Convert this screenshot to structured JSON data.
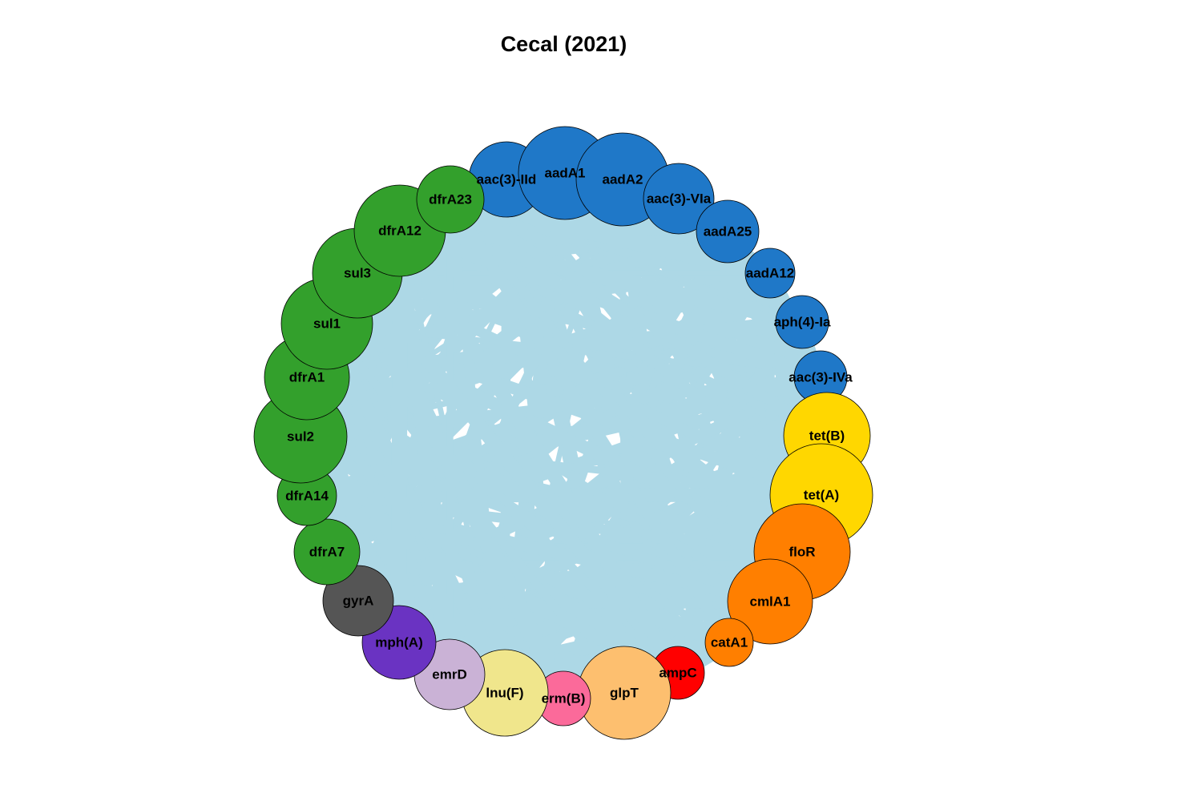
{
  "title": "Cecal (2021)",
  "edge_color": "#ADD8E6",
  "nodes": [
    {
      "id": "aac(3)-IId",
      "color": "#1F78C8"
    },
    {
      "id": "aadA1",
      "color": "#1F78C8"
    },
    {
      "id": "aadA2",
      "color": "#1F78C8"
    },
    {
      "id": "aac(3)-VIa",
      "color": "#1F78C8"
    },
    {
      "id": "aadA25",
      "color": "#1F78C8"
    },
    {
      "id": "aadA12",
      "color": "#1F78C8"
    },
    {
      "id": "aph(4)-Ia",
      "color": "#1F78C8"
    },
    {
      "id": "aac(3)-IVa",
      "color": "#1F78C8"
    },
    {
      "id": "tet(B)",
      "color": "#FFD700"
    },
    {
      "id": "tet(A)",
      "color": "#FFD700"
    },
    {
      "id": "floR",
      "color": "#FF7F00"
    },
    {
      "id": "cmlA1",
      "color": "#FF7F00"
    },
    {
      "id": "catA1",
      "color": "#FF7F00"
    },
    {
      "id": "ampC",
      "color": "#FF0000"
    },
    {
      "id": "glpT",
      "color": "#FDBF6F"
    },
    {
      "id": "erm(B)",
      "color": "#FB6A9A"
    },
    {
      "id": "lnu(F)",
      "color": "#F0E68C"
    },
    {
      "id": "emrD",
      "color": "#CAB2D6"
    },
    {
      "id": "mph(A)",
      "color": "#6A33C2"
    },
    {
      "id": "gyrA",
      "color": "#555555"
    },
    {
      "id": "dfrA7",
      "color": "#33A02C"
    },
    {
      "id": "dfrA14",
      "color": "#33A02C"
    },
    {
      "id": "sul2",
      "color": "#33A02C"
    },
    {
      "id": "dfrA1",
      "color": "#33A02C"
    },
    {
      "id": "sul1",
      "color": "#33A02C"
    },
    {
      "id": "sul3",
      "color": "#33A02C"
    },
    {
      "id": "dfrA12",
      "color": "#33A02C"
    },
    {
      "id": "dfrA23",
      "color": "#33A02C"
    }
  ]
}
